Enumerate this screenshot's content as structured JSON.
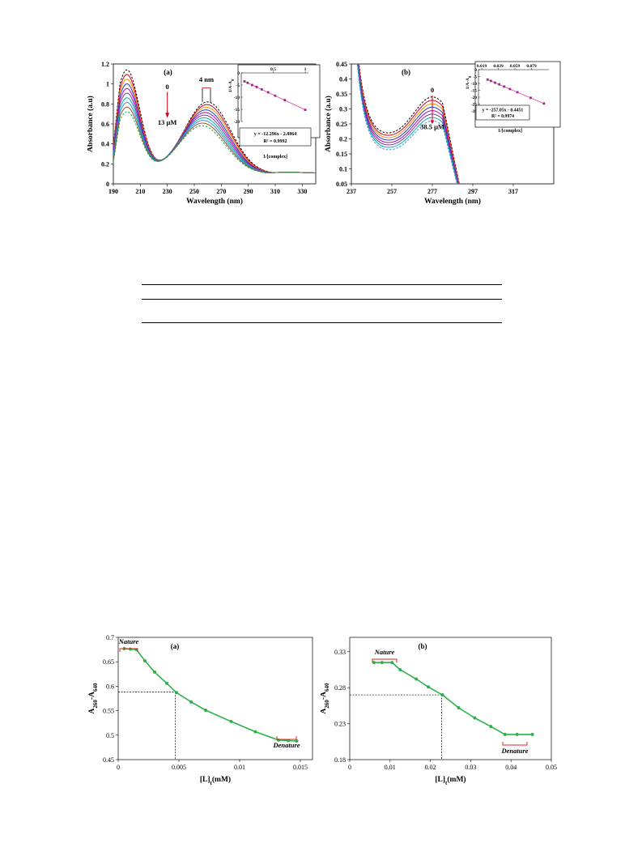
{
  "chart_data": [
    {
      "type": "line",
      "panel_label": "(a)",
      "xlabel": "Wavelength (nm)",
      "ylabel": "Absorbance (a.u)",
      "xlim": [
        190,
        340
      ],
      "ylim": [
        0,
        1.2
      ],
      "x_ticks": [
        "190",
        "210",
        "230",
        "250",
        "270",
        "290",
        "310",
        "330"
      ],
      "y_ticks": [
        "0",
        "0.2",
        "0.4",
        "0.6",
        "0.8",
        "1",
        "1.2"
      ],
      "series_count": 10,
      "peaks": [
        {
          "x": 200,
          "y_top": 1.15,
          "y_bottom": 0.73
        },
        {
          "x": 260,
          "y_top": 0.84,
          "y_bottom": 0.6
        }
      ],
      "valleys": [
        {
          "x": 231,
          "y_top": 0.43,
          "y_bottom": 0.27
        }
      ],
      "annotations": [
        "0",
        "13 μM",
        "4 nm"
      ],
      "inset": {
        "type": "scatter",
        "xlabel": "1/[complex]",
        "ylabel": "1/A-A",
        "ylabel_sub": "0",
        "x_ticks": [
          "0.5",
          "1"
        ],
        "y_ticks": [
          "0",
          "-5",
          "-10",
          "-15",
          "-20"
        ],
        "xlim": [
          0,
          1.05
        ],
        "ylim": [
          -20,
          0
        ],
        "x": [
          0.05,
          0.1,
          0.17,
          0.24,
          0.32,
          0.42,
          0.53,
          0.68,
          1.0
        ],
        "y": [
          -3.5,
          -4.1,
          -5.0,
          -5.8,
          -6.8,
          -8.0,
          -9.4,
          -11.2,
          -15.2
        ],
        "equation": "y = -12.296x - 2.8864",
        "r2": "R² = 0.9992"
      }
    },
    {
      "type": "line",
      "panel_label": "(b)",
      "xlabel": "Wavelength (nm)",
      "ylabel": "Absorbance (a.u)",
      "xlim": [
        237,
        337
      ],
      "ylim": [
        0.05,
        0.45
      ],
      "x_ticks": [
        "237",
        "257",
        "277",
        "297",
        "317"
      ],
      "y_ticks": [
        "0.05",
        "0.1",
        "0.15",
        "0.2",
        "0.25",
        "0.3",
        "0.35",
        "0.4",
        "0.45"
      ],
      "series_count": 8,
      "peaks": [
        {
          "x": 277,
          "y_top": 0.34,
          "y_bottom": 0.26
        }
      ],
      "annotations": [
        "0",
        "38.5 μM"
      ],
      "inset": {
        "type": "scatter",
        "xlabel": "1/[complex]",
        "ylabel": "1/A-A",
        "ylabel_sub": "0",
        "x_ticks": [
          "0.019",
          "0.039",
          "0.059",
          "0.079"
        ],
        "y_ticks": [
          "0",
          "-5",
          "-10",
          "-15",
          "-20",
          "-25",
          "-30"
        ],
        "xlim": [
          0.015,
          0.1
        ],
        "ylim": [
          -30,
          0
        ],
        "x": [
          0.026,
          0.03,
          0.035,
          0.04,
          0.046,
          0.053,
          0.062,
          0.078,
          0.094
        ],
        "y": [
          -7.2,
          -8.2,
          -9.5,
          -10.7,
          -12.3,
          -14.1,
          -16.4,
          -20.5,
          -24.6
        ],
        "equation": "y = -257.05x - 0.4451",
        "r2": "R² = 0.9974"
      }
    },
    {
      "type": "line",
      "panel_label": "(a)",
      "xlabel": "[L]",
      "xlabel_sub": "t",
      "xlabel_unit": "(mM)",
      "ylabel": "A",
      "ylabel_sub1": "260",
      "ylabel_mid": "-A",
      "ylabel_sub2": "640",
      "xlim": [
        0,
        0.016
      ],
      "ylim": [
        0.45,
        0.7
      ],
      "x_ticks": [
        "0",
        "0.005",
        "0.01",
        "0.015"
      ],
      "y_ticks": [
        "0.45",
        "0.5",
        "0.55",
        "0.6",
        "0.65",
        "0.7"
      ],
      "x": [
        0.0005,
        0.001,
        0.0015,
        0.0022,
        0.003,
        0.004,
        0.0048,
        0.006,
        0.0072,
        0.0093,
        0.0113,
        0.0132,
        0.014,
        0.0147
      ],
      "y": [
        0.677,
        0.676,
        0.675,
        0.652,
        0.629,
        0.606,
        0.587,
        0.568,
        0.551,
        0.528,
        0.507,
        0.49,
        0.489,
        0.488
      ],
      "midpoint": {
        "x": 0.0047,
        "y": 0.588
      },
      "labels": {
        "nature": "Nature",
        "denature": "Denature"
      }
    },
    {
      "type": "line",
      "panel_label": "(b)",
      "xlabel": "[L]",
      "xlabel_sub": "t",
      "xlabel_unit": "(mM)",
      "ylabel": "A",
      "ylabel_sub1": "260",
      "ylabel_mid": "-A",
      "ylabel_sub2": "640",
      "xlim": [
        0,
        0.05
      ],
      "ylim": [
        0.18,
        0.35
      ],
      "x_ticks": [
        "0",
        "0.01",
        "0.02",
        "0.03",
        "0.04",
        "0.05"
      ],
      "y_ticks": [
        "0.18",
        "0.23",
        "0.28",
        "0.33"
      ],
      "x": [
        0.006,
        0.008,
        0.0105,
        0.0125,
        0.0165,
        0.0195,
        0.023,
        0.027,
        0.031,
        0.035,
        0.0385,
        0.0415,
        0.0453
      ],
      "y": [
        0.315,
        0.315,
        0.315,
        0.305,
        0.292,
        0.281,
        0.27,
        0.252,
        0.238,
        0.226,
        0.215,
        0.215,
        0.215
      ],
      "midpoint": {
        "x": 0.0228,
        "y": 0.27
      },
      "labels": {
        "nature": "Nature",
        "denature": "Denature"
      }
    }
  ]
}
